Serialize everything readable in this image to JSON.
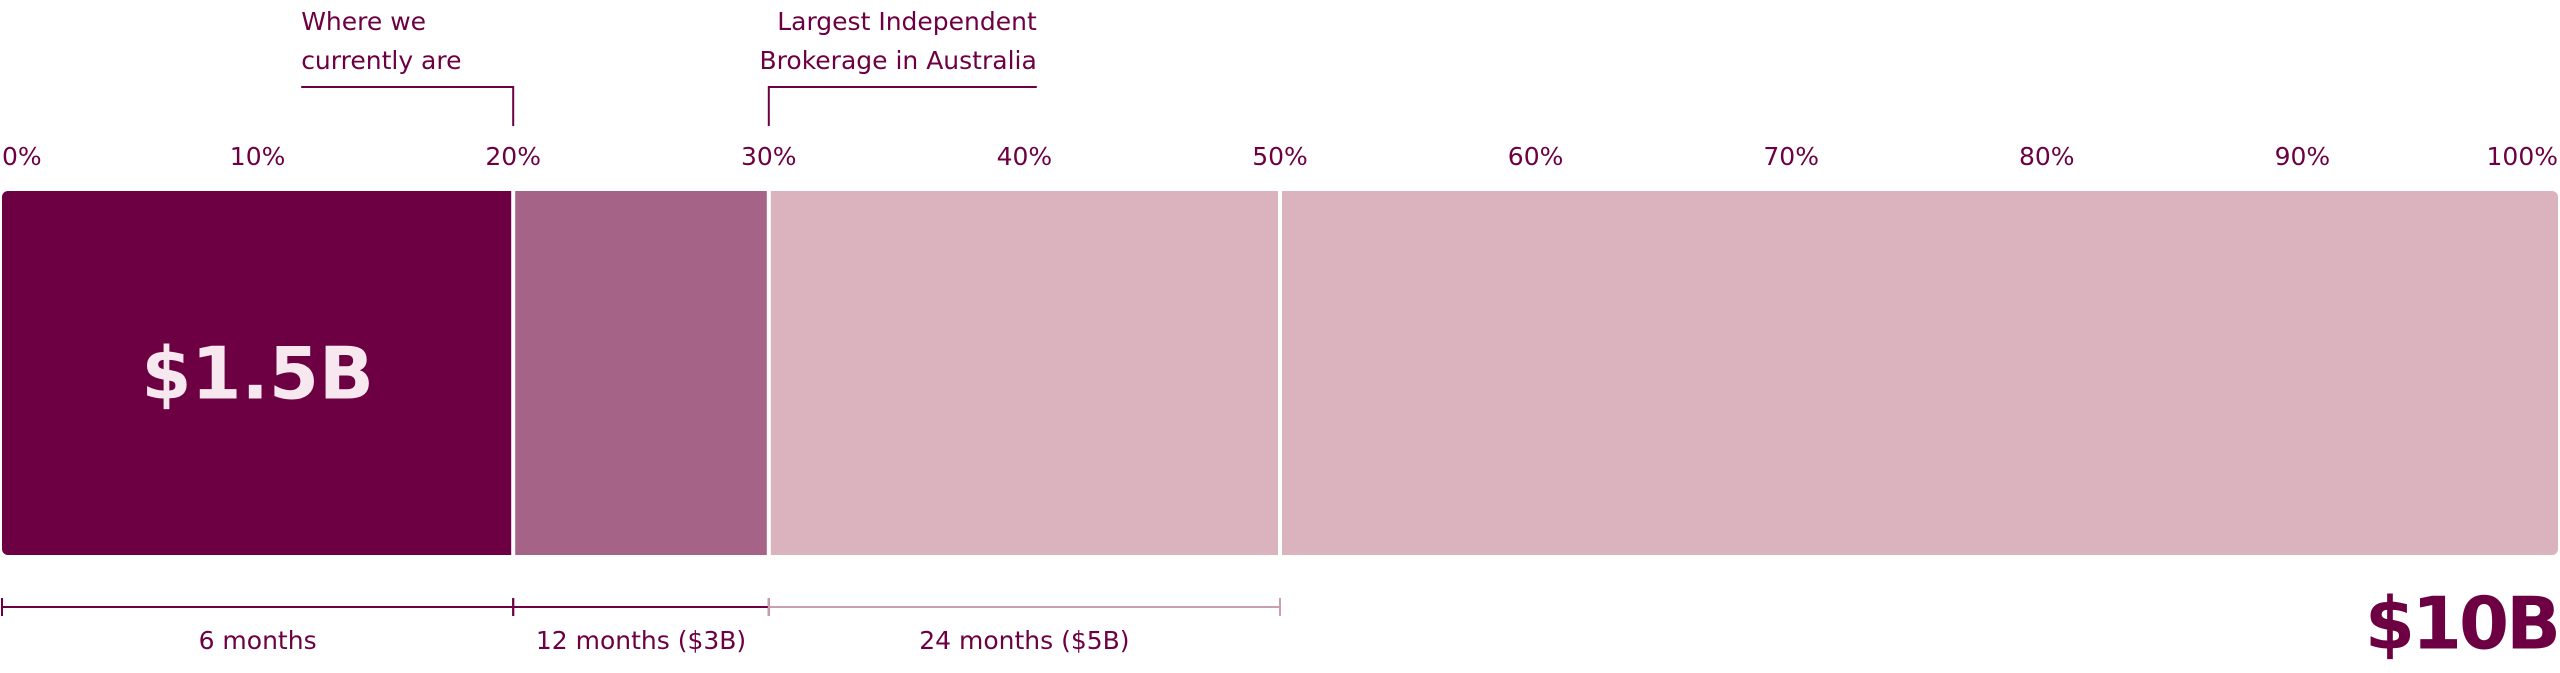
{
  "chart_data": {
    "type": "stacked-progress",
    "xlim": [
      0,
      100
    ],
    "xticks": [
      {
        "value": 0,
        "label": "0%"
      },
      {
        "value": 10,
        "label": "10%"
      },
      {
        "value": 20,
        "label": "20%"
      },
      {
        "value": 30,
        "label": "30%"
      },
      {
        "value": 40,
        "label": "40%"
      },
      {
        "value": 50,
        "label": "50%"
      },
      {
        "value": 60,
        "label": "60%"
      },
      {
        "value": 70,
        "label": "70%"
      },
      {
        "value": 80,
        "label": "80%"
      },
      {
        "value": 90,
        "label": "90%"
      },
      {
        "value": 100,
        "label": "100%"
      }
    ],
    "segments": [
      {
        "value": 20,
        "color": "#6d0042"
      },
      {
        "value": 10,
        "color": "#a66388"
      },
      {
        "value": 20,
        "color": "#dab3bf"
      },
      {
        "value": 50,
        "color": "#dab3bf"
      }
    ],
    "center_label": "$1.5B",
    "total_label": "$10B",
    "annotations": [
      {
        "lines": [
          "Where we",
          "currently are"
        ],
        "x": 20,
        "side": "left"
      },
      {
        "lines": [
          "Largest Independent",
          "Brokerage in Australia"
        ],
        "x": 30,
        "side": "right"
      }
    ],
    "timeline": [
      {
        "label": "6 months",
        "from": 0,
        "to": 20,
        "color": "#6d0042"
      },
      {
        "label": "12 months ($3B)",
        "from": 20,
        "to": 30,
        "color": "#6d0042"
      },
      {
        "label": "24 months ($5B)",
        "from": 30,
        "to": 50,
        "color": "#c9a0b2"
      }
    ]
  }
}
